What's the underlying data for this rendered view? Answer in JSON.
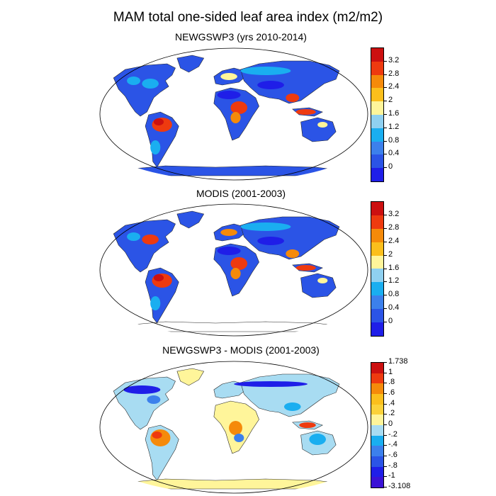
{
  "figure": {
    "title": "MAM total one-sided leaf area index (m2/m2)"
  },
  "panels": [
    {
      "title": "NEWGSWP3 (yrs 2010-2014)",
      "scheme": "lai",
      "colorbar": {
        "colors": [
          "#1f1ee8",
          "#2b54e6",
          "#3c80ec",
          "#1aaef0",
          "#8fd0f0",
          "#fff59a",
          "#fbbf1c",
          "#f58a0a",
          "#ee3a0f",
          "#cc1010"
        ],
        "labels": [
          "0",
          "0.4",
          "0.8",
          "1.2",
          "1.6",
          "2",
          "2.4",
          "2.8",
          "3.2"
        ]
      }
    },
    {
      "title": "MODIS (2001-2003)",
      "scheme": "lai",
      "colorbar": {
        "colors": [
          "#1f1ee8",
          "#2b54e6",
          "#3c80ec",
          "#1aaef0",
          "#8fd0f0",
          "#fff59a",
          "#fbbf1c",
          "#f58a0a",
          "#ee3a0f",
          "#cc1010"
        ],
        "labels": [
          "0",
          "0.4",
          "0.8",
          "1.2",
          "1.6",
          "2",
          "2.4",
          "2.8",
          "3.2"
        ]
      }
    },
    {
      "title": "NEWGSWP3 - MODIS (2001-2003)",
      "scheme": "diff",
      "colorbar": {
        "colors": [
          "#3a12d6",
          "#1f1ee8",
          "#2b54e6",
          "#3c80ec",
          "#1aaef0",
          "#a8dcf2",
          "#fff59a",
          "#fbd23a",
          "#fbbf1c",
          "#f58a0a",
          "#ee3a0f",
          "#cc1010"
        ],
        "labels": [
          "-3.108",
          "-1",
          "-.8",
          "-.6",
          "-.4",
          "-.2",
          "0",
          ".2",
          ".4",
          ".6",
          ".8",
          "1",
          "1.738"
        ]
      }
    }
  ]
}
